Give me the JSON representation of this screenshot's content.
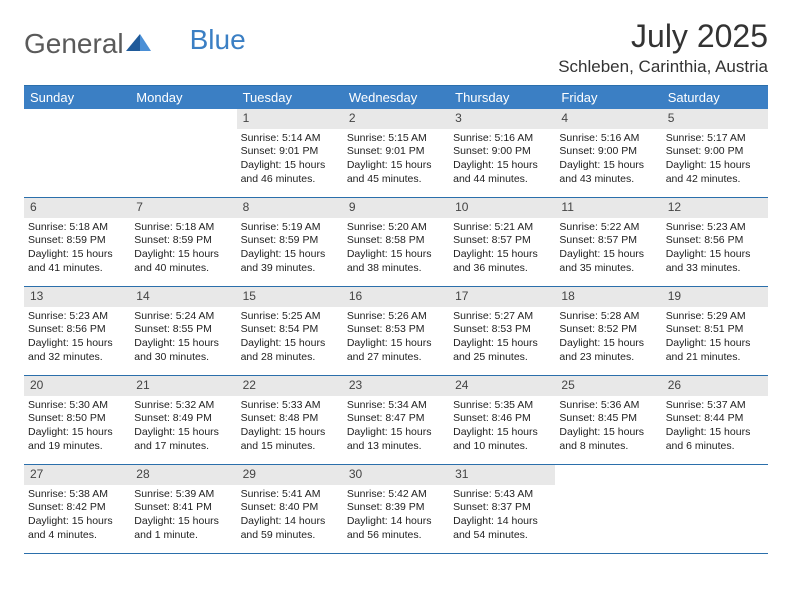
{
  "logo": {
    "text1": "General",
    "text2": "Blue"
  },
  "title": "July 2025",
  "location": "Schleben, Carinthia, Austria",
  "colors": {
    "header_bg": "#3b7fc4",
    "border": "#2b6fab",
    "daynum_bg": "#e8e8e8",
    "text": "#333333"
  },
  "day_headers": [
    "Sunday",
    "Monday",
    "Tuesday",
    "Wednesday",
    "Thursday",
    "Friday",
    "Saturday"
  ],
  "weeks": [
    [
      {
        "n": "",
        "sr": "",
        "ss": "",
        "dl": ""
      },
      {
        "n": "",
        "sr": "",
        "ss": "",
        "dl": ""
      },
      {
        "n": "1",
        "sr": "Sunrise: 5:14 AM",
        "ss": "Sunset: 9:01 PM",
        "dl": "Daylight: 15 hours and 46 minutes."
      },
      {
        "n": "2",
        "sr": "Sunrise: 5:15 AM",
        "ss": "Sunset: 9:01 PM",
        "dl": "Daylight: 15 hours and 45 minutes."
      },
      {
        "n": "3",
        "sr": "Sunrise: 5:16 AM",
        "ss": "Sunset: 9:00 PM",
        "dl": "Daylight: 15 hours and 44 minutes."
      },
      {
        "n": "4",
        "sr": "Sunrise: 5:16 AM",
        "ss": "Sunset: 9:00 PM",
        "dl": "Daylight: 15 hours and 43 minutes."
      },
      {
        "n": "5",
        "sr": "Sunrise: 5:17 AM",
        "ss": "Sunset: 9:00 PM",
        "dl": "Daylight: 15 hours and 42 minutes."
      }
    ],
    [
      {
        "n": "6",
        "sr": "Sunrise: 5:18 AM",
        "ss": "Sunset: 8:59 PM",
        "dl": "Daylight: 15 hours and 41 minutes."
      },
      {
        "n": "7",
        "sr": "Sunrise: 5:18 AM",
        "ss": "Sunset: 8:59 PM",
        "dl": "Daylight: 15 hours and 40 minutes."
      },
      {
        "n": "8",
        "sr": "Sunrise: 5:19 AM",
        "ss": "Sunset: 8:59 PM",
        "dl": "Daylight: 15 hours and 39 minutes."
      },
      {
        "n": "9",
        "sr": "Sunrise: 5:20 AM",
        "ss": "Sunset: 8:58 PM",
        "dl": "Daylight: 15 hours and 38 minutes."
      },
      {
        "n": "10",
        "sr": "Sunrise: 5:21 AM",
        "ss": "Sunset: 8:57 PM",
        "dl": "Daylight: 15 hours and 36 minutes."
      },
      {
        "n": "11",
        "sr": "Sunrise: 5:22 AM",
        "ss": "Sunset: 8:57 PM",
        "dl": "Daylight: 15 hours and 35 minutes."
      },
      {
        "n": "12",
        "sr": "Sunrise: 5:23 AM",
        "ss": "Sunset: 8:56 PM",
        "dl": "Daylight: 15 hours and 33 minutes."
      }
    ],
    [
      {
        "n": "13",
        "sr": "Sunrise: 5:23 AM",
        "ss": "Sunset: 8:56 PM",
        "dl": "Daylight: 15 hours and 32 minutes."
      },
      {
        "n": "14",
        "sr": "Sunrise: 5:24 AM",
        "ss": "Sunset: 8:55 PM",
        "dl": "Daylight: 15 hours and 30 minutes."
      },
      {
        "n": "15",
        "sr": "Sunrise: 5:25 AM",
        "ss": "Sunset: 8:54 PM",
        "dl": "Daylight: 15 hours and 28 minutes."
      },
      {
        "n": "16",
        "sr": "Sunrise: 5:26 AM",
        "ss": "Sunset: 8:53 PM",
        "dl": "Daylight: 15 hours and 27 minutes."
      },
      {
        "n": "17",
        "sr": "Sunrise: 5:27 AM",
        "ss": "Sunset: 8:53 PM",
        "dl": "Daylight: 15 hours and 25 minutes."
      },
      {
        "n": "18",
        "sr": "Sunrise: 5:28 AM",
        "ss": "Sunset: 8:52 PM",
        "dl": "Daylight: 15 hours and 23 minutes."
      },
      {
        "n": "19",
        "sr": "Sunrise: 5:29 AM",
        "ss": "Sunset: 8:51 PM",
        "dl": "Daylight: 15 hours and 21 minutes."
      }
    ],
    [
      {
        "n": "20",
        "sr": "Sunrise: 5:30 AM",
        "ss": "Sunset: 8:50 PM",
        "dl": "Daylight: 15 hours and 19 minutes."
      },
      {
        "n": "21",
        "sr": "Sunrise: 5:32 AM",
        "ss": "Sunset: 8:49 PM",
        "dl": "Daylight: 15 hours and 17 minutes."
      },
      {
        "n": "22",
        "sr": "Sunrise: 5:33 AM",
        "ss": "Sunset: 8:48 PM",
        "dl": "Daylight: 15 hours and 15 minutes."
      },
      {
        "n": "23",
        "sr": "Sunrise: 5:34 AM",
        "ss": "Sunset: 8:47 PM",
        "dl": "Daylight: 15 hours and 13 minutes."
      },
      {
        "n": "24",
        "sr": "Sunrise: 5:35 AM",
        "ss": "Sunset: 8:46 PM",
        "dl": "Daylight: 15 hours and 10 minutes."
      },
      {
        "n": "25",
        "sr": "Sunrise: 5:36 AM",
        "ss": "Sunset: 8:45 PM",
        "dl": "Daylight: 15 hours and 8 minutes."
      },
      {
        "n": "26",
        "sr": "Sunrise: 5:37 AM",
        "ss": "Sunset: 8:44 PM",
        "dl": "Daylight: 15 hours and 6 minutes."
      }
    ],
    [
      {
        "n": "27",
        "sr": "Sunrise: 5:38 AM",
        "ss": "Sunset: 8:42 PM",
        "dl": "Daylight: 15 hours and 4 minutes."
      },
      {
        "n": "28",
        "sr": "Sunrise: 5:39 AM",
        "ss": "Sunset: 8:41 PM",
        "dl": "Daylight: 15 hours and 1 minute."
      },
      {
        "n": "29",
        "sr": "Sunrise: 5:41 AM",
        "ss": "Sunset: 8:40 PM",
        "dl": "Daylight: 14 hours and 59 minutes."
      },
      {
        "n": "30",
        "sr": "Sunrise: 5:42 AM",
        "ss": "Sunset: 8:39 PM",
        "dl": "Daylight: 14 hours and 56 minutes."
      },
      {
        "n": "31",
        "sr": "Sunrise: 5:43 AM",
        "ss": "Sunset: 8:37 PM",
        "dl": "Daylight: 14 hours and 54 minutes."
      },
      {
        "n": "",
        "sr": "",
        "ss": "",
        "dl": ""
      },
      {
        "n": "",
        "sr": "",
        "ss": "",
        "dl": ""
      }
    ]
  ]
}
